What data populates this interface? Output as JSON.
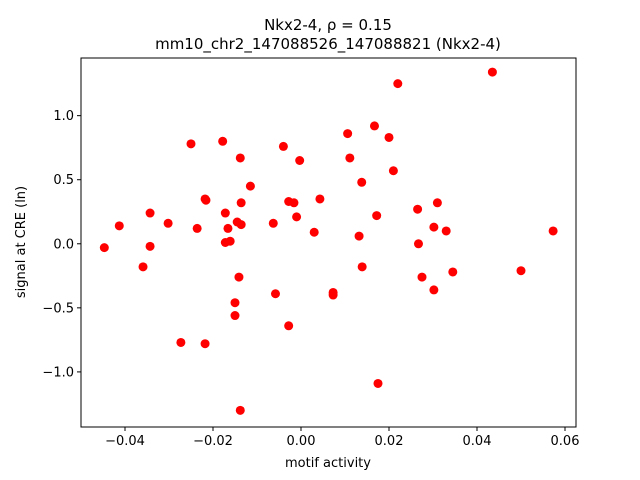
{
  "chart_data": {
    "type": "scatter",
    "title_line1": "Nkx2-4, ρ = 0.15",
    "title_line2": "mm10_chr2_147088526_147088821 (Nkx2-4)",
    "xlabel": "motif activity",
    "ylabel": "signal at CRE (ln)",
    "xlim": [
      -0.05,
      0.0625
    ],
    "ylim": [
      -1.43,
      1.45
    ],
    "xticks": [
      -0.04,
      -0.02,
      0.0,
      0.02,
      0.04,
      0.06
    ],
    "xtick_labels": [
      "−0.04",
      "−0.02",
      "0.00",
      "0.02",
      "0.04",
      "0.06"
    ],
    "yticks": [
      -1.0,
      -0.5,
      0.0,
      0.5,
      1.0
    ],
    "ytick_labels": [
      "−1.0",
      "−0.5",
      "0.0",
      "0.5",
      "1.0"
    ],
    "grid": false,
    "color": "#ff0000",
    "points": [
      {
        "x": -0.0447,
        "y": -0.03
      },
      {
        "x": -0.0413,
        "y": 0.14
      },
      {
        "x": -0.0359,
        "y": -0.18
      },
      {
        "x": -0.0343,
        "y": 0.24
      },
      {
        "x": -0.0343,
        "y": -0.02
      },
      {
        "x": -0.0302,
        "y": 0.16
      },
      {
        "x": -0.0273,
        "y": -0.77
      },
      {
        "x": -0.025,
        "y": 0.78
      },
      {
        "x": -0.0236,
        "y": 0.12
      },
      {
        "x": -0.0218,
        "y": 0.35
      },
      {
        "x": -0.0216,
        "y": 0.34
      },
      {
        "x": -0.0218,
        "y": -0.78
      },
      {
        "x": -0.0178,
        "y": 0.8
      },
      {
        "x": -0.0172,
        "y": 0.24
      },
      {
        "x": -0.0172,
        "y": 0.01
      },
      {
        "x": -0.0166,
        "y": 0.12
      },
      {
        "x": -0.0161,
        "y": 0.02
      },
      {
        "x": -0.015,
        "y": -0.46
      },
      {
        "x": -0.015,
        "y": -0.56
      },
      {
        "x": -0.0145,
        "y": 0.17
      },
      {
        "x": -0.0141,
        "y": -0.26
      },
      {
        "x": -0.0138,
        "y": 0.67
      },
      {
        "x": -0.0136,
        "y": 0.32
      },
      {
        "x": -0.0136,
        "y": 0.15
      },
      {
        "x": -0.0138,
        "y": -1.3
      },
      {
        "x": -0.0115,
        "y": 0.45
      },
      {
        "x": -0.0063,
        "y": 0.16
      },
      {
        "x": -0.0058,
        "y": -0.39
      },
      {
        "x": -0.004,
        "y": 0.76
      },
      {
        "x": -0.0028,
        "y": 0.33
      },
      {
        "x": -0.0028,
        "y": -0.64
      },
      {
        "x": -0.0016,
        "y": 0.32
      },
      {
        "x": -0.001,
        "y": 0.21
      },
      {
        "x": -0.0003,
        "y": 0.65
      },
      {
        "x": 0.003,
        "y": 0.09
      },
      {
        "x": 0.0043,
        "y": 0.35
      },
      {
        "x": 0.0073,
        "y": -0.38
      },
      {
        "x": 0.0073,
        "y": -0.4
      },
      {
        "x": 0.0106,
        "y": 0.86
      },
      {
        "x": 0.0111,
        "y": 0.67
      },
      {
        "x": 0.0132,
        "y": 0.06
      },
      {
        "x": 0.0138,
        "y": 0.48
      },
      {
        "x": 0.0139,
        "y": -0.18
      },
      {
        "x": 0.0167,
        "y": 0.92
      },
      {
        "x": 0.0172,
        "y": 0.22
      },
      {
        "x": 0.0175,
        "y": -1.09
      },
      {
        "x": 0.02,
        "y": 0.83
      },
      {
        "x": 0.021,
        "y": 0.57
      },
      {
        "x": 0.022,
        "y": 1.25
      },
      {
        "x": 0.0265,
        "y": 0.27
      },
      {
        "x": 0.0267,
        "y": 0.0
      },
      {
        "x": 0.0275,
        "y": -0.26
      },
      {
        "x": 0.0302,
        "y": 0.13
      },
      {
        "x": 0.0302,
        "y": -0.36
      },
      {
        "x": 0.031,
        "y": 0.32
      },
      {
        "x": 0.033,
        "y": 0.1
      },
      {
        "x": 0.0345,
        "y": -0.22
      },
      {
        "x": 0.0435,
        "y": 1.34
      },
      {
        "x": 0.05,
        "y": -0.21
      },
      {
        "x": 0.0573,
        "y": 0.1
      }
    ]
  }
}
